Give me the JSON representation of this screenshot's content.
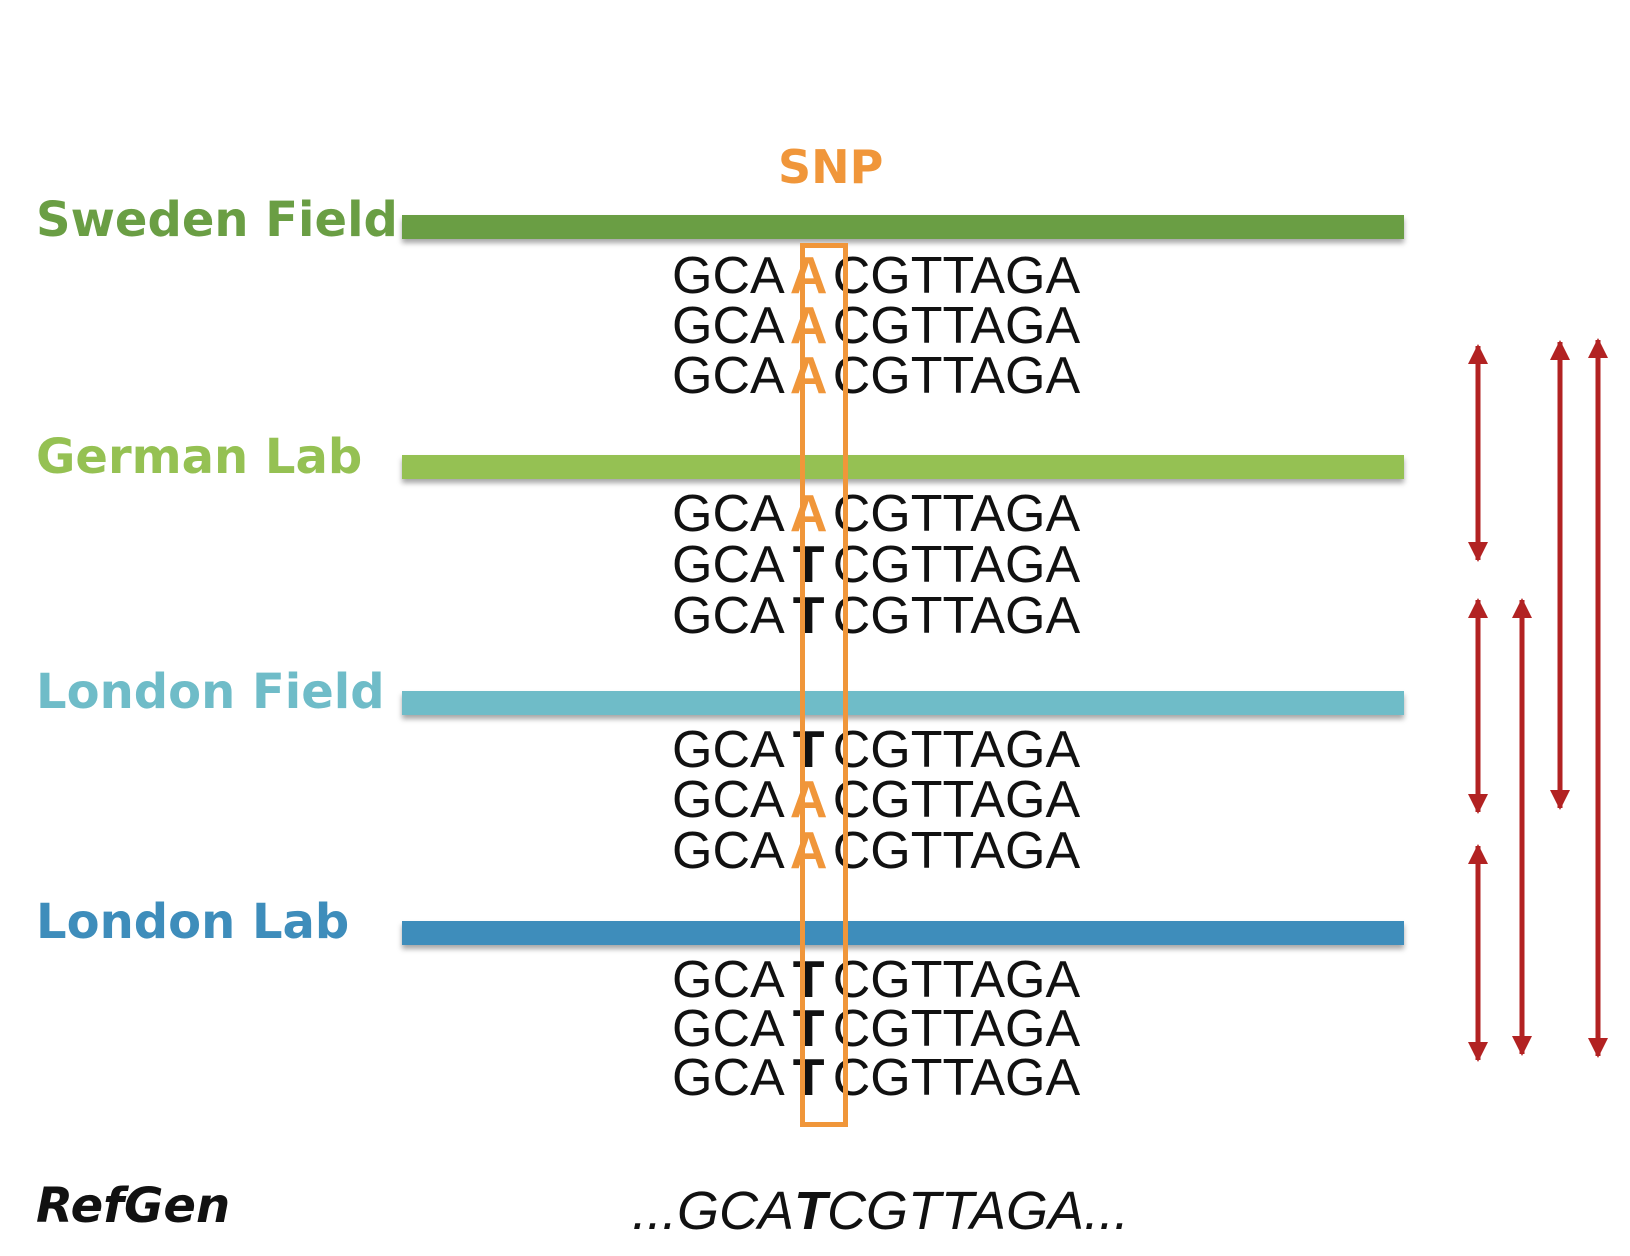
{
  "diagram": {
    "snp_label": "SNP",
    "reference": {
      "label": "RefGen",
      "prefix": "...GCA",
      "snp_base": "T",
      "suffix": "CGTTAGA..."
    },
    "groups": [
      {
        "label": "Sweden Field",
        "color": "#6a9e44",
        "reads": [
          {
            "left": "GCA",
            "snp": "A",
            "right": "CGTTAGA"
          },
          {
            "left": "GCA",
            "snp": "A",
            "right": "CGTTAGA"
          },
          {
            "left": "GCA",
            "snp": "A",
            "right": "CGTTAGA"
          }
        ]
      },
      {
        "label": "German Lab",
        "color": "#95c153",
        "reads": [
          {
            "left": "GCA",
            "snp": "A",
            "right": "CGTTAGA"
          },
          {
            "left": "GCA",
            "snp": "T",
            "right": "CGTTAGA"
          },
          {
            "left": "GCA",
            "snp": "T",
            "right": "CGTTAGA"
          }
        ]
      },
      {
        "label": "London Field",
        "color": "#6fbcc8",
        "reads": [
          {
            "left": "GCA",
            "snp": "T",
            "right": "CGTTAGA"
          },
          {
            "left": "GCA",
            "snp": "A",
            "right": "CGTTAGA"
          },
          {
            "left": "GCA",
            "snp": "A",
            "right": "CGTTAGA"
          }
        ]
      },
      {
        "label": "London Lab",
        "color": "#3e8dbb",
        "reads": [
          {
            "left": "GCA",
            "snp": "T",
            "right": "CGTTAGA"
          },
          {
            "left": "GCA",
            "snp": "T",
            "right": "CGTTAGA"
          },
          {
            "left": "GCA",
            "snp": "T",
            "right": "CGTTAGA"
          }
        ]
      }
    ],
    "colors": {
      "snp_highlight": "#f0963a",
      "sequence_text": "#111111",
      "comparison_arrow": "#b22222"
    },
    "comparisons": [
      {
        "from": "Sweden Field",
        "to": "German Lab"
      },
      {
        "from": "German Lab",
        "to": "London Field"
      },
      {
        "from": "London Field",
        "to": "London Lab"
      },
      {
        "from": "German Lab",
        "to": "London Lab"
      },
      {
        "from": "Sweden Field",
        "to": "London Field"
      },
      {
        "from": "Sweden Field",
        "to": "London Lab"
      }
    ]
  }
}
